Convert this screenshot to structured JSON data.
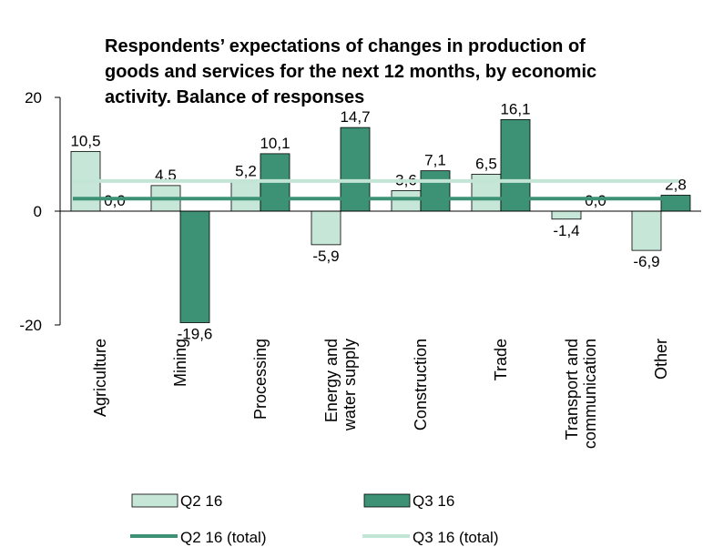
{
  "chart_data": {
    "type": "bar",
    "title": [
      "Respondents’ expectations of changes in production of",
      "goods and services for the next 12 months, by economic",
      "activity. Balance of responses"
    ],
    "categories": [
      [
        "Agriculture"
      ],
      [
        "Mining"
      ],
      [
        "Processing"
      ],
      [
        "Energy and",
        "water supply"
      ],
      [
        "Construction"
      ],
      [
        "Trade"
      ],
      [
        "Transport and",
        "communication"
      ],
      [
        "Other"
      ]
    ],
    "series": [
      {
        "name": "Q2 16",
        "color": "#c6e6d8",
        "values": [
          10.5,
          4.5,
          5.2,
          -5.9,
          3.6,
          6.5,
          -1.4,
          -6.9
        ],
        "value_labels": [
          "10,5",
          "4,5",
          "5,2",
          "-5,9",
          "3,6",
          "6,5",
          "-1,4",
          "-6,9"
        ]
      },
      {
        "name": "Q3 16",
        "color": "#3d9275",
        "values": [
          0.0,
          -19.6,
          10.1,
          14.7,
          7.1,
          16.1,
          0.0,
          2.8
        ],
        "value_labels": [
          "0,0",
          "-19,6",
          "10,1",
          "14,7",
          "7,1",
          "16,1",
          "0,0",
          "2,8"
        ]
      }
    ],
    "lines": [
      {
        "name": "Q2 16 (total)",
        "color": "#3d9275",
        "value": 2.2
      },
      {
        "name": "Q3 16 (total)",
        "color": "#c3e5d6",
        "value": 5.3
      }
    ],
    "ylim": [
      -20,
      20
    ],
    "yticks": [
      -20,
      0,
      20
    ]
  }
}
